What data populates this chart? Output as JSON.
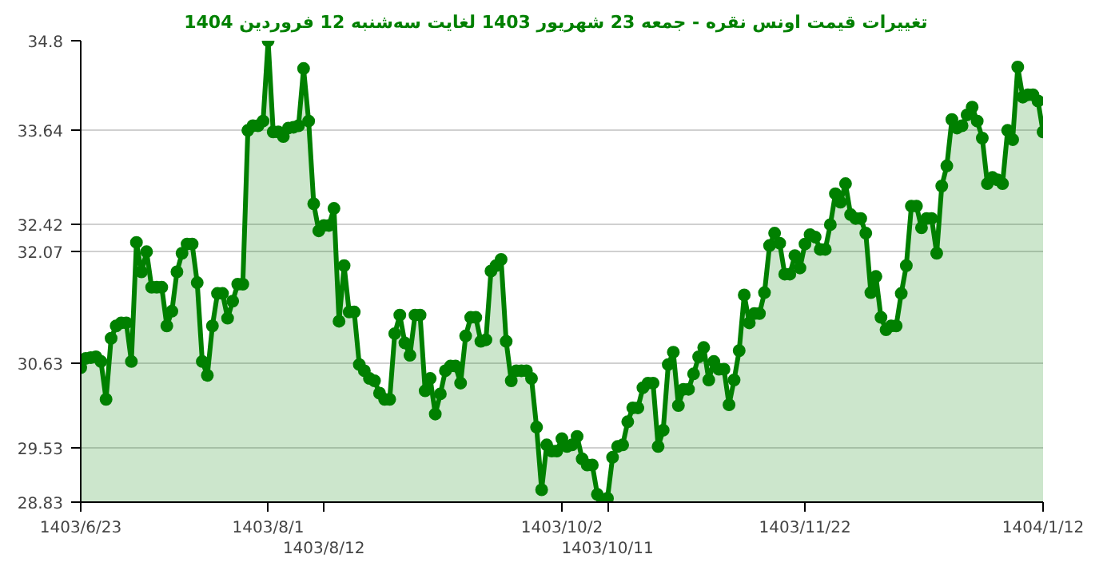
{
  "chart_data": {
    "type": "area",
    "title": "تغییرات قیمت اونس نقره - جمعه  23 شهریور 1403 لغایت سه‌شنبه  12 فروردین 1404",
    "categories": [
      "1403/6/23",
      null,
      null,
      null,
      null,
      null,
      null,
      null,
      null,
      null,
      null,
      null,
      null,
      null,
      null,
      null,
      null,
      null,
      null,
      null,
      null,
      null,
      null,
      null,
      null,
      null,
      null,
      null,
      null,
      null,
      null,
      null,
      null,
      null,
      null,
      null,
      null,
      "1403/8/1",
      null,
      null,
      null,
      null,
      null,
      null,
      null,
      null,
      null,
      null,
      "1403/8/12",
      null,
      null,
      null,
      null,
      null,
      null,
      null,
      null,
      null,
      null,
      null,
      null,
      null,
      null,
      null,
      null,
      null,
      null,
      null,
      null,
      null,
      null,
      null,
      null,
      null,
      null,
      null,
      null,
      null,
      null,
      null,
      null,
      null,
      null,
      null,
      null,
      null,
      null,
      null,
      null,
      null,
      null,
      null,
      null,
      null,
      null,
      "1403/10/2",
      null,
      null,
      null,
      null,
      null,
      null,
      null,
      null,
      "1403/10/11",
      null,
      null,
      null,
      null,
      null,
      null,
      null,
      null,
      null,
      null,
      null,
      null,
      null,
      null,
      null,
      null,
      null,
      null,
      null,
      null,
      null,
      null,
      null,
      null,
      null,
      null,
      null,
      null,
      null,
      null,
      null,
      null,
      null,
      null,
      null,
      null,
      null,
      null,
      "1403/11/22",
      null,
      null,
      null,
      null,
      null,
      null,
      null,
      null,
      null,
      null,
      null,
      null,
      null,
      null,
      null,
      null,
      null,
      null,
      null,
      null,
      null,
      null,
      null,
      null,
      null,
      null,
      null,
      null,
      null,
      null,
      null,
      null,
      null,
      null,
      null,
      null,
      null,
      null,
      null,
      null,
      null,
      null,
      null,
      null,
      null,
      null,
      "1404/1/12"
    ],
    "series": [
      {
        "color": "#008000",
        "values": [
          30.57,
          30.69,
          30.7,
          30.71,
          30.65,
          30.16,
          30.95,
          31.11,
          31.15,
          31.15,
          30.65,
          32.19,
          31.81,
          32.07,
          31.61,
          31.61,
          31.61,
          31.11,
          31.3,
          31.81,
          32.05,
          32.17,
          32.17,
          31.67,
          30.65,
          30.47,
          31.11,
          31.53,
          31.53,
          31.21,
          31.43,
          31.65,
          31.65,
          33.64,
          33.7,
          33.7,
          33.76,
          34.8,
          33.62,
          33.62,
          33.56,
          33.67,
          33.68,
          33.7,
          34.44,
          33.76,
          32.69,
          32.34,
          32.41,
          32.41,
          32.63,
          31.17,
          31.89,
          31.29,
          31.29,
          30.61,
          30.53,
          30.43,
          30.4,
          30.24,
          30.16,
          30.16,
          31.01,
          31.25,
          30.89,
          30.73,
          31.25,
          31.25,
          30.27,
          30.43,
          29.97,
          30.23,
          30.53,
          30.59,
          30.59,
          30.37,
          30.98,
          31.22,
          31.22,
          30.91,
          30.93,
          31.82,
          31.89,
          31.97,
          30.91,
          30.4,
          30.53,
          30.53,
          30.53,
          30.43,
          29.8,
          28.99,
          29.57,
          29.49,
          29.49,
          29.65,
          29.55,
          29.57,
          29.68,
          29.39,
          29.31,
          29.31,
          28.93,
          28.83,
          28.88,
          29.41,
          29.55,
          29.57,
          29.87,
          30.05,
          30.05,
          30.31,
          30.37,
          30.37,
          29.55,
          29.76,
          30.61,
          30.77,
          30.08,
          30.29,
          30.29,
          30.49,
          30.71,
          30.83,
          30.41,
          30.65,
          30.55,
          30.55,
          30.09,
          30.41,
          30.79,
          31.51,
          31.15,
          31.27,
          31.27,
          31.54,
          32.15,
          32.31,
          32.18,
          31.78,
          31.78,
          32.02,
          31.86,
          32.17,
          32.29,
          32.26,
          32.1,
          32.1,
          32.42,
          32.82,
          32.71,
          32.95,
          32.55,
          32.5,
          32.5,
          32.31,
          31.54,
          31.75,
          31.22,
          31.06,
          31.11,
          31.11,
          31.53,
          31.89,
          32.66,
          32.66,
          32.38,
          32.5,
          32.5,
          32.05,
          32.92,
          33.18,
          33.78,
          33.67,
          33.7,
          33.84,
          33.94,
          33.76,
          33.54,
          32.95,
          33.03,
          33.0,
          32.95,
          33.64,
          33.52,
          34.46,
          34.07,
          34.1,
          34.1,
          34.02,
          33.62
        ]
      }
    ],
    "ylim": [
      28.83,
      34.8
    ],
    "yticks": [
      28.83,
      29.53,
      30.63,
      32.07,
      32.42,
      33.64,
      34.8
    ],
    "grid": "y",
    "marker": "circle",
    "line_style": "solid"
  }
}
